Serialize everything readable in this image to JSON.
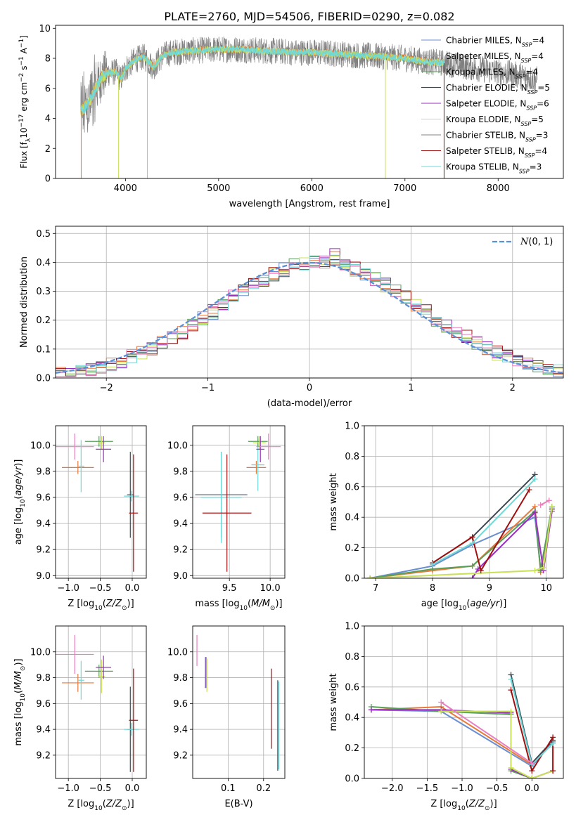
{
  "figure_title": "PLATE=2760, MJD=54506, FIBERID=0290, z=0.082",
  "colors": {
    "chabrier_miles": "#6a8fd0",
    "salpeter_miles": "#e8793a",
    "kroupa_miles": "#58a05a",
    "chabrier_elodie": "#404850",
    "salpeter_elodie": "#9a2ec0",
    "kroupa_elodie": "#c9e05a",
    "chabrier_stelib": "#808080",
    "salpeter_stelib": "#a01010",
    "kroupa_stelib": "#70d8d8",
    "extra_pink": "#e97fbf",
    "normal": "#5b8fd6"
  },
  "chart_data": [
    {
      "id": "spectrum",
      "type": "line",
      "xlabel": "wavelength [Angstrom, rest frame]",
      "ylabel": "Flux [f_λ10^-17 erg cm^-2 s^-1 A^-1]",
      "xlim": [
        3250,
        8700
      ],
      "ylim": [
        0,
        10.2
      ],
      "xticks": [
        4000,
        5000,
        6000,
        7000,
        8000
      ],
      "yticks": [
        0,
        2,
        4,
        6,
        8,
        10
      ],
      "grid": false,
      "legend_position": "top-right",
      "continuum_x": [
        3530,
        3600,
        3700,
        3750,
        3800,
        3900,
        3950,
        4000,
        4100,
        4200,
        4300,
        4400,
        4500,
        4700,
        5000,
        5200,
        5500,
        5800,
        6000,
        6300,
        6500,
        6800,
        7000,
        7200,
        7400,
        7600,
        7800,
        8000,
        8200,
        8400
      ],
      "continuum_y": [
        4.5,
        5.0,
        6.2,
        6.8,
        7.0,
        7.1,
        6.6,
        7.3,
        7.9,
        8.1,
        7.4,
        8.2,
        8.4,
        8.5,
        8.6,
        8.6,
        8.5,
        8.4,
        8.4,
        8.3,
        8.2,
        8.1,
        8.0,
        7.8,
        7.7,
        7.5,
        7.3,
        7.1,
        6.9,
        6.6
      ],
      "series": [
        {
          "name": "Chabrier MILES, N_SSP=4",
          "color_key": "chabrier_miles"
        },
        {
          "name": "Salpeter MILES, N_SSP=4",
          "color_key": "extra_pink"
        },
        {
          "name": "Kroupa MILES, N_SSP=4",
          "color_key": "kroupa_miles"
        },
        {
          "name": "Chabrier ELODIE, N_SSP=5",
          "color_key": "chabrier_elodie"
        },
        {
          "name": "Salpeter ELODIE, N_SSP=6",
          "color_key": "salpeter_elodie"
        },
        {
          "name": "Kroupa ELODIE, N_SSP=5",
          "color_key": "kroupa_elodie"
        },
        {
          "name": "Chabrier STELIB, N_SSP=3",
          "color_key": "chabrier_stelib"
        },
        {
          "name": "Salpeter STELIB, N_SSP=4",
          "color_key": "salpeter_stelib"
        },
        {
          "name": "Kroupa STELIB, N_SSP=3",
          "color_key": "kroupa_stelib"
        }
      ]
    },
    {
      "id": "residuals",
      "type": "line",
      "xlabel": "(data-model)/error",
      "ylabel": "Normed distribution",
      "xlim": [
        -2.5,
        2.5
      ],
      "ylim": [
        0,
        0.525
      ],
      "xticks": [
        -2,
        -1,
        0,
        1,
        2
      ],
      "yticks": [
        0.0,
        0.1,
        0.2,
        0.3,
        0.4,
        0.5
      ],
      "grid": true,
      "legend_position": "top-right",
      "normal_label": "N(0,1)"
    },
    {
      "id": "age_vs_Z",
      "type": "scatter",
      "xlabel": "Z [log10(Z/Z⊙)]",
      "ylabel": "age  [log10(age/yr)]",
      "xlim": [
        -1.2,
        0.22
      ],
      "ylim": [
        8.98,
        10.15
      ],
      "xticks": [
        -1.0,
        -0.5,
        0.0
      ],
      "yticks": [
        9.0,
        9.2,
        9.4,
        9.6,
        9.8,
        10.0
      ],
      "grid": true,
      "points": [
        {
          "x": -0.9,
          "y": 9.99,
          "x_err": 0.3,
          "y_err": 0.1,
          "color_key": "extra_pink"
        },
        {
          "x": -0.85,
          "y": 9.83,
          "x_err": 0.25,
          "y_err": 0.05,
          "color_key": "salpeter_miles"
        },
        {
          "x": -0.8,
          "y": 9.84,
          "x_err": 0.05,
          "y_err": 0.2,
          "color_key": "kroupa_stelib"
        },
        {
          "x": -0.52,
          "y": 10.03,
          "x_err": 0.22,
          "y_err": 0.04,
          "color_key": "kroupa_miles"
        },
        {
          "x": -0.48,
          "y": 10.02,
          "x_err": 0.05,
          "y_err": 0.05,
          "color_key": "kroupa_elodie"
        },
        {
          "x": -0.45,
          "y": 9.97,
          "x_err": 0.12,
          "y_err": 0.1,
          "color_key": "salpeter_elodie"
        },
        {
          "x": -0.03,
          "y": 9.62,
          "x_err": 0.05,
          "y_err": 0.33,
          "color_key": "chabrier_elodie"
        },
        {
          "x": -0.01,
          "y": 9.61,
          "x_err": 0.12,
          "y_err": 0.04,
          "color_key": "kroupa_stelib"
        },
        {
          "x": 0.02,
          "y": 9.48,
          "x_err": 0.07,
          "y_err": 0.45,
          "color_key": "salpeter_stelib"
        }
      ]
    },
    {
      "id": "age_vs_mass",
      "type": "scatter",
      "xlabel": "mass [log10(M/M⊙)]",
      "ylabel": "",
      "xlim": [
        9.05,
        10.18
      ],
      "ylim": [
        8.98,
        10.15
      ],
      "xticks": [
        9.5,
        10.0
      ],
      "yticks": [
        9.0,
        9.2,
        9.4,
        9.6,
        9.8,
        10.0
      ],
      "grid": true,
      "points": [
        {
          "x": 9.4,
          "y": 9.62,
          "x_err": 0.32,
          "y_err": 0.33,
          "color_key": "chabrier_elodie"
        },
        {
          "x": 9.4,
          "y": 9.6,
          "x_err": 0.25,
          "y_err": 0.35,
          "color_key": "kroupa_stelib"
        },
        {
          "x": 9.47,
          "y": 9.48,
          "x_err": 0.3,
          "y_err": 0.45,
          "color_key": "salpeter_stelib"
        },
        {
          "x": 9.83,
          "y": 9.83,
          "x_err": 0.12,
          "y_err": 0.05,
          "color_key": "salpeter_miles"
        },
        {
          "x": 9.85,
          "y": 9.85,
          "x_err": 0.08,
          "y_err": 0.2,
          "color_key": "kroupa_stelib"
        },
        {
          "x": 9.85,
          "y": 10.03,
          "x_err": 0.12,
          "y_err": 0.04,
          "color_key": "kroupa_miles"
        },
        {
          "x": 9.87,
          "y": 10.02,
          "x_err": 0.08,
          "y_err": 0.05,
          "color_key": "kroupa_elodie"
        },
        {
          "x": 9.88,
          "y": 9.97,
          "x_err": 0.05,
          "y_err": 0.1,
          "color_key": "salpeter_elodie"
        },
        {
          "x": 9.98,
          "y": 9.99,
          "x_err": 0.15,
          "y_err": 0.1,
          "color_key": "extra_pink"
        }
      ]
    },
    {
      "id": "weight_vs_age",
      "type": "line",
      "xlabel": "age  [log10(age/yr)]",
      "ylabel": "mass weight",
      "xlim": [
        6.8,
        10.3
      ],
      "ylim": [
        0,
        1.0
      ],
      "xticks": [
        7,
        8,
        9,
        10
      ],
      "yticks": [
        0.0,
        0.2,
        0.4,
        0.6,
        0.8,
        1.0
      ],
      "grid": true,
      "series": [
        {
          "color_key": "chabrier_miles",
          "x": [
            6.9,
            8.0,
            8.7,
            9.8,
            9.9,
            10.1
          ],
          "y": [
            0.0,
            0.08,
            0.22,
            0.4,
            0.06,
            0.46
          ]
        },
        {
          "color_key": "salpeter_miles",
          "x": [
            6.9,
            8.0,
            8.7,
            9.8,
            9.9,
            10.1
          ],
          "y": [
            0.0,
            0.05,
            0.08,
            0.47,
            0.04,
            0.45
          ]
        },
        {
          "color_key": "kroupa_miles",
          "x": [
            6.9,
            8.0,
            8.7,
            9.8,
            9.9,
            10.1
          ],
          "y": [
            0.0,
            0.06,
            0.08,
            0.44,
            0.05,
            0.47
          ]
        },
        {
          "color_key": "chabrier_elodie",
          "x": [
            8.0,
            8.7,
            9.8
          ],
          "y": [
            0.1,
            0.27,
            0.68
          ]
        },
        {
          "color_key": "salpeter_elodie",
          "x": [
            8.7,
            8.8,
            9.8,
            9.95,
            10.1
          ],
          "y": [
            0.0,
            0.06,
            0.43,
            0.05,
            0.44
          ]
        },
        {
          "color_key": "kroupa_elodie",
          "x": [
            6.9,
            9.8,
            9.95,
            10.1
          ],
          "y": [
            0.0,
            0.05,
            0.07,
            0.47
          ]
        },
        {
          "color_key": "salpeter_stelib",
          "x": [
            8.0,
            8.7,
            8.85,
            9.7
          ],
          "y": [
            0.1,
            0.27,
            0.05,
            0.58
          ]
        },
        {
          "color_key": "kroupa_stelib",
          "x": [
            8.0,
            8.7,
            9.8
          ],
          "y": [
            0.09,
            0.23,
            0.65
          ]
        },
        {
          "color_key": "extra_pink",
          "x": [
            9.9,
            10.05
          ],
          "y": [
            0.48,
            0.51
          ]
        }
      ]
    },
    {
      "id": "mass_vs_Z",
      "type": "scatter",
      "xlabel": "Z [log10(Z/Z⊙)]",
      "ylabel": "mass [log10(M/M⊙)]",
      "xlim": [
        -1.2,
        0.22
      ],
      "ylim": [
        9.02,
        10.2
      ],
      "xticks": [
        -1.0,
        -0.5,
        0.0
      ],
      "yticks": [
        9.2,
        9.4,
        9.6,
        9.8,
        10.0
      ],
      "grid": true,
      "points": [
        {
          "x": -0.9,
          "y": 9.98,
          "x_err": 0.3,
          "y_err": 0.15,
          "color_key": "extra_pink"
        },
        {
          "x": -0.85,
          "y": 9.76,
          "x_err": 0.25,
          "y_err": 0.07,
          "color_key": "salpeter_miles"
        },
        {
          "x": -0.8,
          "y": 9.78,
          "x_err": 0.05,
          "y_err": 0.15,
          "color_key": "kroupa_stelib"
        },
        {
          "x": -0.52,
          "y": 9.85,
          "x_err": 0.22,
          "y_err": 0.05,
          "color_key": "kroupa_miles"
        },
        {
          "x": -0.48,
          "y": 9.81,
          "x_err": 0.05,
          "y_err": 0.13,
          "color_key": "kroupa_elodie"
        },
        {
          "x": -0.45,
          "y": 9.88,
          "x_err": 0.12,
          "y_err": 0.09,
          "color_key": "salpeter_elodie"
        },
        {
          "x": -0.03,
          "y": 9.4,
          "x_err": 0.05,
          "y_err": 0.33,
          "color_key": "chabrier_elodie"
        },
        {
          "x": -0.01,
          "y": 9.4,
          "x_err": 0.12,
          "y_err": 0.05,
          "color_key": "kroupa_stelib"
        },
        {
          "x": 0.02,
          "y": 9.47,
          "x_err": 0.07,
          "y_err": 0.4,
          "color_key": "salpeter_stelib"
        }
      ]
    },
    {
      "id": "mass_vs_ebv",
      "type": "scatter",
      "xlabel": "E(B-V)",
      "ylabel": "",
      "xlim": [
        0.0,
        0.26
      ],
      "ylim": [
        9.02,
        10.2
      ],
      "xticks": [
        0.1,
        0.2
      ],
      "yticks": [
        9.2,
        9.4,
        9.6,
        9.8,
        10.0
      ],
      "grid": true,
      "points": [
        {
          "x": 0.012,
          "y": 10.01,
          "x_err": 0.0,
          "y_err": 0.12,
          "color_key": "extra_pink"
        },
        {
          "x": 0.036,
          "y": 9.84,
          "x_err": 0.0,
          "y_err": 0.12,
          "color_key": "salpeter_elodie"
        },
        {
          "x": 0.038,
          "y": 9.84,
          "x_err": 0.0,
          "y_err": 0.12,
          "color_key": "chabrier_miles"
        },
        {
          "x": 0.04,
          "y": 9.82,
          "x_err": 0.0,
          "y_err": 0.13,
          "color_key": "kroupa_elodie"
        },
        {
          "x": 0.222,
          "y": 9.56,
          "x_err": 0.0,
          "y_err": 0.31,
          "color_key": "salpeter_stelib"
        },
        {
          "x": 0.24,
          "y": 9.43,
          "x_err": 0.0,
          "y_err": 0.35,
          "color_key": "chabrier_elodie"
        },
        {
          "x": 0.243,
          "y": 9.43,
          "x_err": 0.0,
          "y_err": 0.34,
          "color_key": "kroupa_stelib"
        }
      ]
    },
    {
      "id": "weight_vs_Z",
      "type": "line",
      "xlabel": "Z [log10(Z/Z⊙)]",
      "ylabel": "mass weight",
      "xlim": [
        -2.4,
        0.45
      ],
      "ylim": [
        0,
        1.0
      ],
      "xticks": [
        -2.0,
        -1.5,
        -1.0,
        -0.5,
        0.0
      ],
      "yticks": [
        0.0,
        0.2,
        0.4,
        0.6,
        0.8,
        1.0
      ],
      "grid": true,
      "series": [
        {
          "color_key": "chabrier_miles",
          "x": [
            -2.3,
            -1.3,
            0.0,
            0.3
          ],
          "y": [
            0.45,
            0.44,
            0.08,
            0.24
          ]
        },
        {
          "color_key": "salpeter_miles",
          "x": [
            -2.3,
            -1.3,
            0.0
          ],
          "y": [
            0.45,
            0.47,
            0.09
          ]
        },
        {
          "color_key": "kroupa_miles",
          "x": [
            -2.3,
            -1.3,
            -0.3,
            -0.3,
            0.0
          ],
          "y": [
            0.47,
            0.44,
            0.42,
            0.05,
            0.0
          ]
        },
        {
          "color_key": "chabrier_elodie",
          "x": [
            -0.3,
            0.0,
            0.3
          ],
          "y": [
            0.68,
            0.1,
            0.25
          ]
        },
        {
          "color_key": "salpeter_elodie",
          "x": [
            -2.3,
            -1.3,
            -0.3,
            -0.3,
            0.0,
            0.3
          ],
          "y": [
            0.45,
            0.45,
            0.43,
            0.06,
            0.0,
            0.05
          ]
        },
        {
          "color_key": "kroupa_elodie",
          "x": [
            -1.3,
            -0.3,
            -0.3,
            0.0,
            0.3
          ],
          "y": [
            0.44,
            0.44,
            0.07,
            0.0,
            0.05
          ]
        },
        {
          "color_key": "salpeter_stelib",
          "x": [
            -0.3,
            0.0,
            0.3,
            0.3
          ],
          "y": [
            0.58,
            0.05,
            0.27,
            0.05
          ]
        },
        {
          "color_key": "kroupa_stelib",
          "x": [
            -0.3,
            0.0,
            0.3
          ],
          "y": [
            0.65,
            0.09,
            0.23
          ]
        },
        {
          "color_key": "extra_pink",
          "x": [
            -1.3,
            0.0
          ],
          "y": [
            0.5,
            0.1
          ]
        }
      ]
    }
  ]
}
